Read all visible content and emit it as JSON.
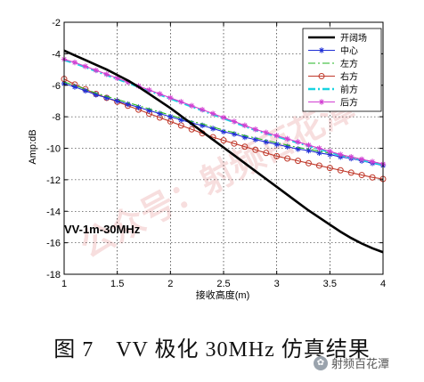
{
  "chart_data": {
    "type": "line",
    "title": "",
    "xlabel": "接收高度(m)",
    "ylabel": "Amp:dB",
    "xlim": [
      1,
      4
    ],
    "ylim": [
      -18,
      -2
    ],
    "xticks": [
      1,
      1.5,
      2,
      2.5,
      3,
      3.5,
      4
    ],
    "xtick_labels": [
      "1",
      "1.5",
      "2",
      "2.5",
      "3",
      "3.5",
      "4"
    ],
    "yticks": [
      -18,
      -16,
      -14,
      -12,
      -10,
      -8,
      -6,
      -4,
      -2
    ],
    "ytick_labels": [
      "-18",
      "-16",
      "-14",
      "-12",
      "-10",
      "-8",
      "-6",
      "-4",
      "-2"
    ],
    "grid": true,
    "legend_position": "top-right",
    "annotation": "VV-1m-30MHz",
    "x": [
      1.0,
      1.1,
      1.2,
      1.3,
      1.4,
      1.5,
      1.6,
      1.7,
      1.8,
      1.9,
      2.0,
      2.1,
      2.2,
      2.3,
      2.4,
      2.5,
      2.6,
      2.7,
      2.8,
      2.9,
      3.0,
      3.1,
      3.2,
      3.3,
      3.4,
      3.5,
      3.6,
      3.7,
      3.8,
      3.9,
      4.0
    ],
    "series": [
      {
        "name": "开阔场",
        "color": "#000000",
        "style": "solid-thick",
        "marker": "none",
        "values": [
          -3.8,
          -4.1,
          -4.4,
          -4.7,
          -5.0,
          -5.35,
          -5.7,
          -6.1,
          -6.55,
          -7.0,
          -7.45,
          -7.95,
          -8.45,
          -8.95,
          -9.45,
          -9.95,
          -10.45,
          -10.95,
          -11.45,
          -11.95,
          -12.45,
          -12.95,
          -13.45,
          -13.95,
          -14.4,
          -14.85,
          -15.3,
          -15.7,
          -16.05,
          -16.35,
          -16.6
        ]
      },
      {
        "name": "中心",
        "color": "#1f2fd6",
        "style": "solid",
        "marker": "star",
        "values": [
          -5.9,
          -6.1,
          -6.35,
          -6.6,
          -6.8,
          -7.0,
          -7.2,
          -7.4,
          -7.6,
          -7.8,
          -8.0,
          -8.2,
          -8.4,
          -8.55,
          -8.75,
          -8.95,
          -9.1,
          -9.3,
          -9.45,
          -9.6,
          -9.75,
          -9.9,
          -10.05,
          -10.15,
          -10.3,
          -10.4,
          -10.55,
          -10.65,
          -10.8,
          -10.95,
          -11.1
        ]
      },
      {
        "name": "左方",
        "color": "#22b622",
        "style": "dashdot",
        "marker": "none",
        "values": [
          -5.8,
          -6.0,
          -6.25,
          -6.5,
          -6.7,
          -6.9,
          -7.1,
          -7.3,
          -7.5,
          -7.7,
          -7.9,
          -8.1,
          -8.3,
          -8.45,
          -8.65,
          -8.85,
          -9.0,
          -9.2,
          -9.35,
          -9.5,
          -9.65,
          -9.8,
          -9.95,
          -10.05,
          -10.2,
          -10.3,
          -10.45,
          -10.55,
          -10.7,
          -10.85,
          -11.0
        ]
      },
      {
        "name": "右方",
        "color": "#c0392b",
        "style": "solid",
        "marker": "circle",
        "values": [
          -5.6,
          -5.95,
          -6.25,
          -6.55,
          -6.8,
          -7.05,
          -7.3,
          -7.55,
          -7.8,
          -8.05,
          -8.3,
          -8.55,
          -8.8,
          -9.05,
          -9.3,
          -9.5,
          -9.7,
          -9.9,
          -10.1,
          -10.3,
          -10.5,
          -10.65,
          -10.8,
          -10.95,
          -11.1,
          -11.25,
          -11.4,
          -11.55,
          -11.7,
          -11.85,
          -11.95
        ]
      },
      {
        "name": "前方",
        "color": "#19d3e0",
        "style": "dashdot-thick",
        "marker": "none",
        "values": [
          -4.4,
          -4.6,
          -4.85,
          -5.1,
          -5.35,
          -5.6,
          -5.85,
          -6.1,
          -6.35,
          -6.6,
          -6.85,
          -7.1,
          -7.35,
          -7.6,
          -7.85,
          -8.1,
          -8.35,
          -8.6,
          -8.85,
          -9.05,
          -9.25,
          -9.45,
          -9.65,
          -9.85,
          -10.05,
          -10.25,
          -10.45,
          -10.6,
          -10.75,
          -10.9,
          -11.05
        ]
      },
      {
        "name": "后方",
        "color": "#d23fd2",
        "style": "solid",
        "marker": "star",
        "values": [
          -4.35,
          -4.55,
          -4.8,
          -5.05,
          -5.3,
          -5.55,
          -5.8,
          -6.05,
          -6.3,
          -6.55,
          -6.8,
          -7.05,
          -7.3,
          -7.55,
          -7.8,
          -8.05,
          -8.3,
          -8.55,
          -8.8,
          -9.0,
          -9.2,
          -9.4,
          -9.6,
          -9.8,
          -10.0,
          -10.2,
          -10.4,
          -10.55,
          -10.7,
          -10.85,
          -11.0
        ]
      }
    ]
  },
  "caption": "图 7　VV 极化 30MHz 仿真结果",
  "watermark_text": "射频百花潭",
  "background_watermark": "公众号：射频百花潭"
}
